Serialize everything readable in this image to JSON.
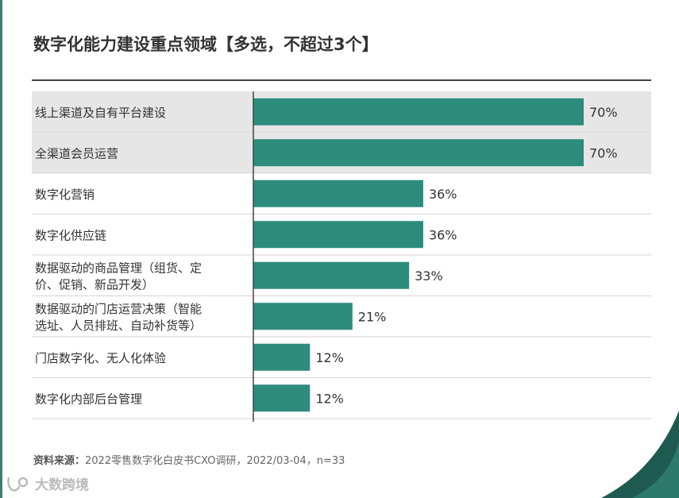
{
  "title": "数字化能力建设重点领域【多选，不超过3个】",
  "source_label": "资料来源：",
  "source_text": "2022零售数字化白皮书CXO调研，2022/03-04，n=33",
  "watermark_text": "大数跨境",
  "colors": {
    "bar": "#2d8c7c",
    "highlight_row": "#e6e6e6",
    "divider": "#d4d4d4",
    "axis": "#444444",
    "corner_dark": "#1f5a50"
  },
  "chart_data": {
    "type": "bar",
    "orientation": "horizontal",
    "categories": [
      [
        "线上渠道及自有平台建设"
      ],
      [
        "全渠道会员运营"
      ],
      [
        "数字化营销"
      ],
      [
        "数字化供应链"
      ],
      [
        "数据驱动的商品管理（组货、定",
        "价、促销、新品开发）"
      ],
      [
        "数据驱动的门店运营决策（智能",
        "选址、人员排班、自动补货等）"
      ],
      [
        "门店数字化、无人化体验"
      ],
      [
        "数字化内部后台管理"
      ]
    ],
    "values": [
      70,
      70,
      36,
      36,
      33,
      21,
      12,
      12
    ],
    "value_labels": [
      "70%",
      "70%",
      "36%",
      "36%",
      "33%",
      "21%",
      "12%",
      "12%"
    ],
    "highlighted": [
      true,
      true,
      false,
      false,
      false,
      false,
      false,
      false
    ],
    "unit": "%",
    "xlim": [
      0,
      70
    ]
  }
}
